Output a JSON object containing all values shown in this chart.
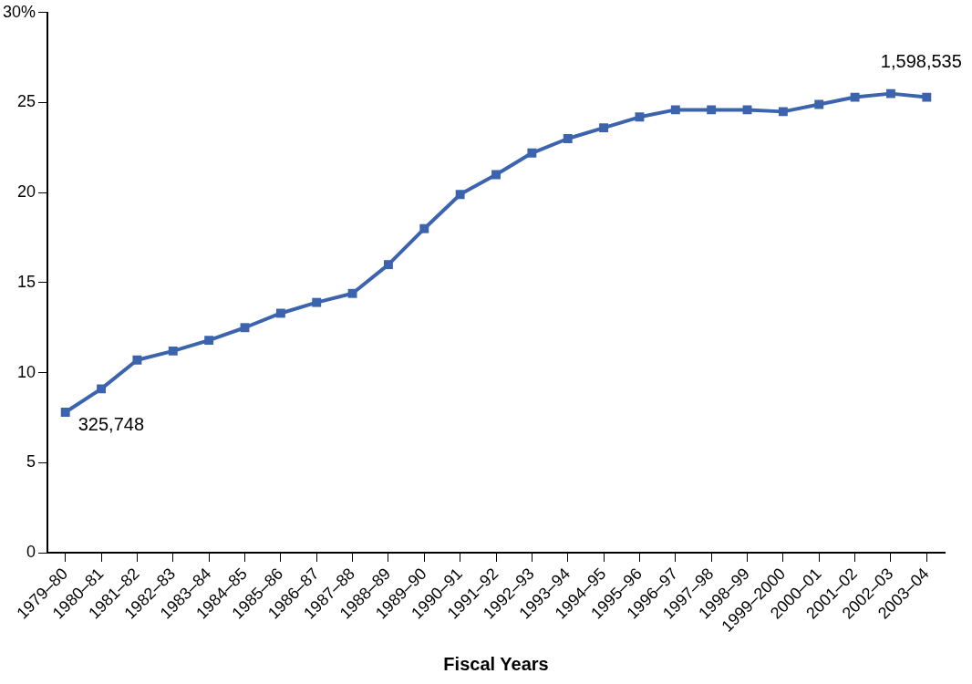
{
  "chart_data": {
    "type": "line",
    "xlabel": "Fiscal Years",
    "categories": [
      "1979–80",
      "1980–81",
      "1981–82",
      "1982–83",
      "1983–84",
      "1984–85",
      "1985–86",
      "1986–87",
      "1987–88",
      "1988–89",
      "1989–90",
      "1990–91",
      "1991–92",
      "1992–93",
      "1993–94",
      "1994–95",
      "1995–96",
      "1996–97",
      "1997–98",
      "1998–99",
      "1999–2000",
      "2000–01",
      "2001–02",
      "2002–03",
      "2003–04"
    ],
    "series": [
      {
        "color": "#3c64ae",
        "values": [
          7.8,
          9.1,
          10.7,
          11.2,
          11.8,
          12.5,
          13.3,
          13.9,
          14.4,
          16.0,
          18.0,
          19.9,
          21.0,
          22.2,
          23.0,
          23.6,
          24.2,
          24.6,
          24.6,
          24.6,
          24.5,
          24.9,
          25.3,
          25.5,
          25.3
        ]
      }
    ],
    "ylim": [
      0,
      30
    ],
    "yticks": [
      0,
      5,
      10,
      15,
      20,
      25,
      {
        "value": 30,
        "label": "30%"
      }
    ],
    "annotations": [
      {
        "text": "325,748",
        "x": "1979–80",
        "y": 7.8
      },
      {
        "text": "1,598,535",
        "x": "2003–04",
        "y": 25.3
      }
    ],
    "grid": false,
    "legend": false,
    "marker": "square",
    "line_style": "solid"
  }
}
